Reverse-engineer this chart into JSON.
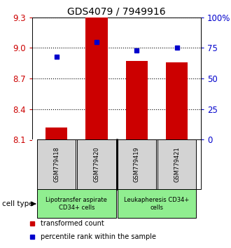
{
  "title": "GDS4079 / 7949916",
  "samples": [
    "GSM779418",
    "GSM779420",
    "GSM779419",
    "GSM779421"
  ],
  "bar_values": [
    8.22,
    9.3,
    8.87,
    8.86
  ],
  "scatter_values": [
    68,
    80,
    73,
    75
  ],
  "ylim_left": [
    8.1,
    9.3
  ],
  "yticks_left": [
    8.1,
    8.4,
    8.7,
    9.0,
    9.3
  ],
  "ylim_right": [
    0,
    100
  ],
  "yticks_right": [
    0,
    25,
    50,
    75,
    100
  ],
  "yticklabels_right": [
    "0",
    "25",
    "50",
    "75",
    "100%"
  ],
  "bar_color": "#cc0000",
  "scatter_color": "#0000cc",
  "bar_bottom": 8.1,
  "cell_type_label": "cell type",
  "group1_label": "Lipotransfer aspirate\nCD34+ cells",
  "group2_label": "Leukapheresis CD34+\ncells",
  "cell_color": "#90ee90",
  "legend_items": [
    {
      "color": "#cc0000",
      "label": "transformed count"
    },
    {
      "color": "#0000cc",
      "label": "percentile rank within the sample"
    }
  ],
  "sample_box_color": "#d3d3d3",
  "left_tick_color": "#cc0000",
  "right_tick_color": "#0000cc",
  "title_fontsize": 10
}
